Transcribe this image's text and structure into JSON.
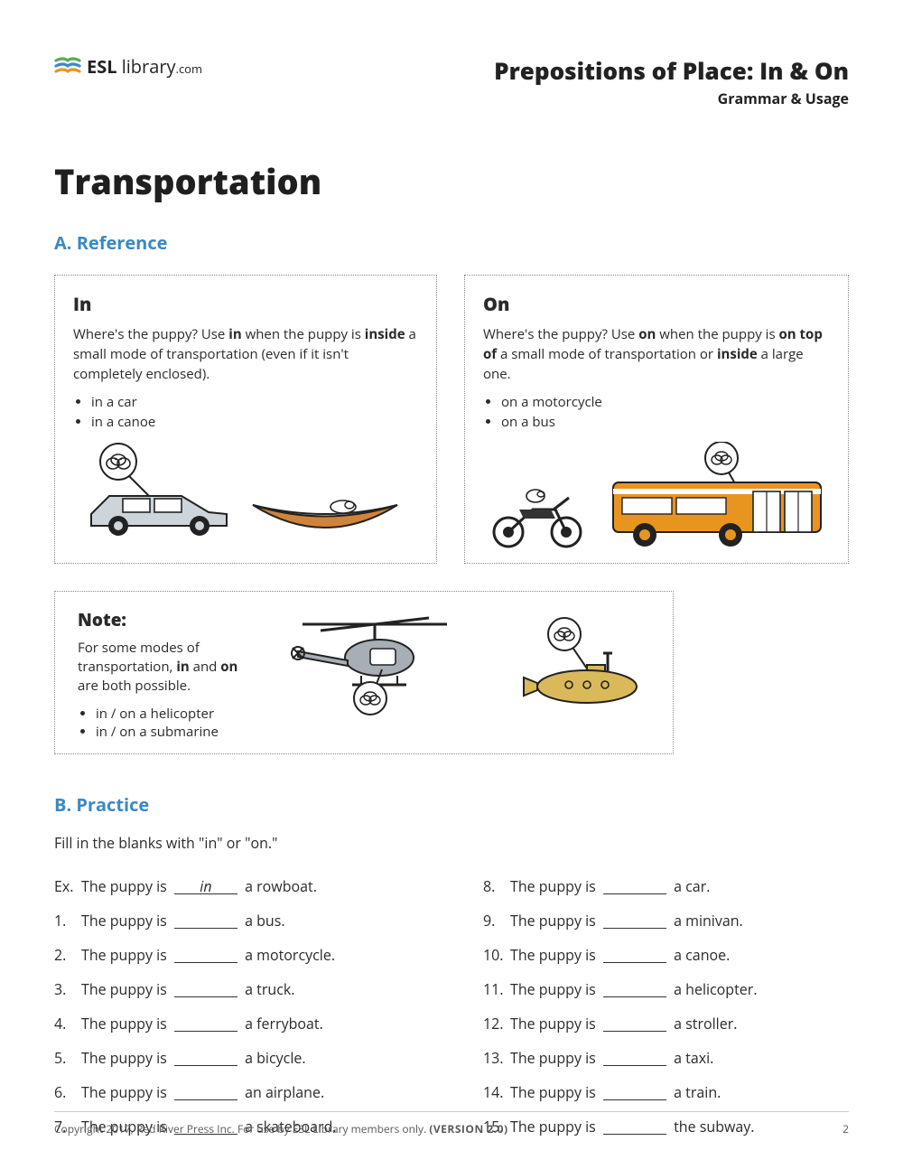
{
  "logo": {
    "brand_strong": "ESL",
    "brand_light": " library",
    "brand_suffix": ".com"
  },
  "header": {
    "title": "Prepositions of Place: In & On",
    "subtitle": "Grammar & Usage"
  },
  "main_title": "Transportation",
  "sections": {
    "a": "A. Reference",
    "b": "B. Practice"
  },
  "ref_in": {
    "heading": "In",
    "body_pre": "Where's the puppy? Use ",
    "body_b1": "in",
    "body_mid": " when the puppy is ",
    "body_b2": "inside",
    "body_post": " a small mode of transportation (even if it isn't completely enclosed).",
    "items": [
      "in a car",
      "in a canoe"
    ]
  },
  "ref_on": {
    "heading": "On",
    "body_pre": "Where's the puppy? Use ",
    "body_b1": "on",
    "body_mid": " when the puppy is ",
    "body_b2": "on top of",
    "body_mid2": " a small mode of transportation or ",
    "body_b3": "inside",
    "body_post": " a large one.",
    "items": [
      "on a motorcycle",
      "on a bus"
    ]
  },
  "note": {
    "heading": "Note:",
    "body_pre": "For some modes of transportation, ",
    "body_b1": "in",
    "body_mid": " and ",
    "body_b2": "on",
    "body_post": " are both possible.",
    "items": [
      "in / on a helicopter",
      "in / on a submarine"
    ]
  },
  "practice": {
    "intro": "Fill in the blanks with \"in\" or \"on.\"",
    "left": [
      {
        "num": "Ex.",
        "pre": "The puppy is ",
        "ans": "in",
        "post": " a rowboat."
      },
      {
        "num": "1.",
        "pre": "The puppy is ",
        "ans": "",
        "post": " a bus."
      },
      {
        "num": "2.",
        "pre": "The puppy is ",
        "ans": "",
        "post": " a motorcycle."
      },
      {
        "num": "3.",
        "pre": "The puppy is ",
        "ans": "",
        "post": " a truck."
      },
      {
        "num": "4.",
        "pre": "The puppy is ",
        "ans": "",
        "post": " a ferryboat."
      },
      {
        "num": "5.",
        "pre": "The puppy is ",
        "ans": "",
        "post": " a bicycle."
      },
      {
        "num": "6.",
        "pre": "The puppy is ",
        "ans": "",
        "post": " an airplane."
      },
      {
        "num": "7.",
        "pre": "The puppy is ",
        "ans": "",
        "post": " a skateboard."
      }
    ],
    "right": [
      {
        "num": "8.",
        "pre": "The puppy is ",
        "ans": "",
        "post": " a car."
      },
      {
        "num": "9.",
        "pre": "The puppy is ",
        "ans": "",
        "post": " a minivan."
      },
      {
        "num": "10.",
        "pre": "The puppy is ",
        "ans": "",
        "post": " a canoe."
      },
      {
        "num": "11.",
        "pre": "The puppy is ",
        "ans": "",
        "post": " a helicopter."
      },
      {
        "num": "12.",
        "pre": "The puppy is ",
        "ans": "",
        "post": " a stroller."
      },
      {
        "num": "13.",
        "pre": "The puppy is ",
        "ans": "",
        "post": " a taxi."
      },
      {
        "num": "14.",
        "pre": "The puppy is ",
        "ans": "",
        "post": " a train."
      },
      {
        "num": "15.",
        "pre": "The puppy is ",
        "ans": "",
        "post": " the subway."
      }
    ]
  },
  "footer": {
    "copyright": "Copyright 2017, Red River Press Inc. For use by ESL Library members only.  ",
    "version": "(VERSION 2.0)",
    "page": "2"
  },
  "colors": {
    "accent": "#3a88c8",
    "bus": "#e8951f",
    "canoe": "#d0833a",
    "sub": "#d9b95a",
    "grey": "#a8aeb5"
  }
}
